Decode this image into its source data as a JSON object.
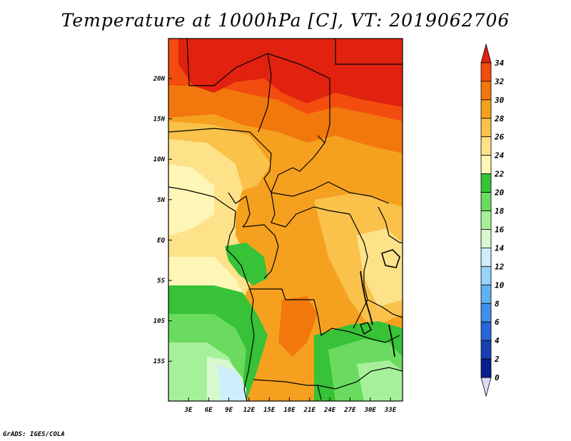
{
  "title": "Temperature at 1000hPa [C], VT: 2019062706",
  "credit": "GrADS: IGES/COLA",
  "map": {
    "lat_labels": [
      "20N",
      "15N",
      "10N",
      "5N",
      "EQ",
      "5S",
      "10S",
      "15S"
    ],
    "lon_labels": [
      "3E",
      "6E",
      "9E",
      "12E",
      "15E",
      "18E",
      "21E",
      "24E",
      "27E",
      "30E",
      "33E"
    ]
  },
  "colorbar": {
    "labels": [
      "34",
      "32",
      "30",
      "28",
      "26",
      "24",
      "22",
      "20",
      "18",
      "16",
      "14",
      "12",
      "10",
      "8",
      "6",
      "4",
      "2",
      "0"
    ],
    "colors": [
      "#e0220f",
      "#f24d0f",
      "#f2780e",
      "#f5a11f",
      "#fac24b",
      "#fde28a",
      "#fdf6b6",
      "#37c237",
      "#6adb5e",
      "#a7f09a",
      "#d8f8d0",
      "#cdeefc",
      "#98d3f8",
      "#5fb2f0",
      "#3f90e8",
      "#2766d6",
      "#163fb2",
      "#0a1f8c",
      "#dcdcf6"
    ]
  }
}
